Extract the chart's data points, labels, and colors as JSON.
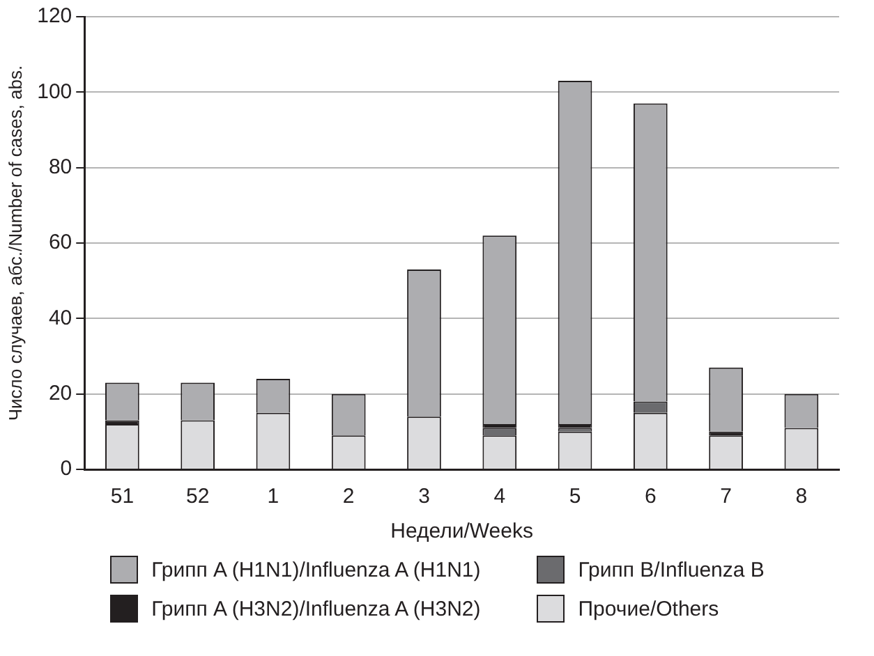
{
  "chart_data": {
    "type": "bar",
    "stacked": true,
    "xlabel": "Недели/Weeks",
    "ylabel": "Число случаев, абс./Number of cases, abs.",
    "categories": [
      "51",
      "52",
      "1",
      "2",
      "3",
      "4",
      "5",
      "6",
      "7",
      "8"
    ],
    "series": [
      {
        "name": "Прочие/Others",
        "color": "#dcdcde",
        "values": [
          12,
          13,
          15,
          9,
          14,
          9,
          10,
          15,
          9,
          11
        ]
      },
      {
        "name": "Грипп B/Influenza B",
        "color": "#6b6b6e",
        "values": [
          0,
          0,
          0,
          0,
          0,
          2,
          1,
          3,
          0,
          0
        ]
      },
      {
        "name": "Грипп A (H3N2)/Influenza A (H3N2)",
        "color": "#231f20",
        "values": [
          1,
          0,
          0,
          0,
          0,
          1,
          1,
          0,
          1,
          0
        ]
      },
      {
        "name": "Грипп A (H1N1)/Influenza A (H1N1)",
        "color": "#adadb0",
        "values": [
          10,
          10,
          9,
          11,
          39,
          50,
          91,
          79,
          17,
          9
        ]
      }
    ],
    "ylim": [
      0,
      120
    ],
    "yticks": [
      0,
      20,
      40,
      60,
      80,
      100,
      120
    ],
    "grid": "y",
    "legend": "bottom"
  }
}
